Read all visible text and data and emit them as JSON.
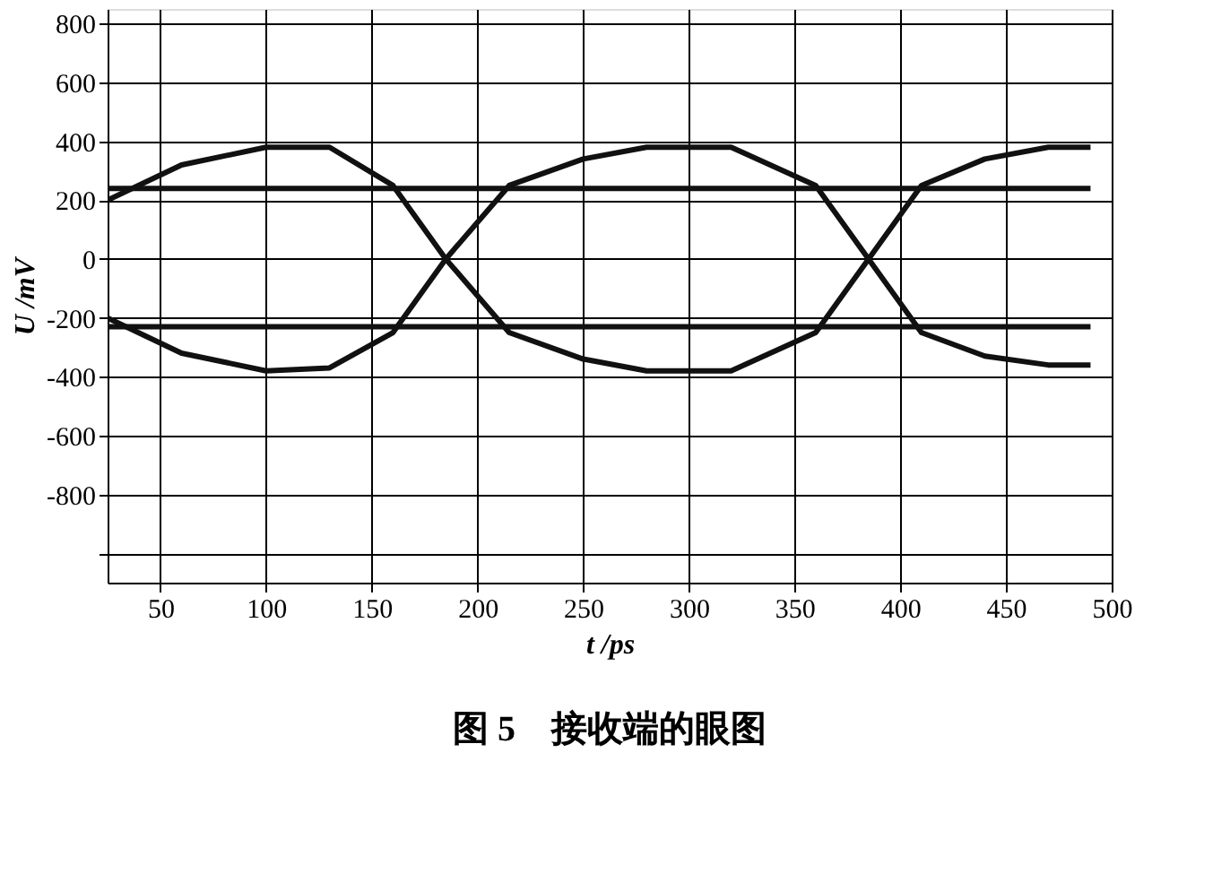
{
  "chart_data": {
    "type": "line",
    "xlabel": "t /ps",
    "ylabel": "U /mV",
    "annotations": [
      "图 5　接收端的眼图"
    ],
    "xlim": [
      25,
      500
    ],
    "xticks": [
      50,
      100,
      150,
      200,
      250,
      300,
      350,
      400,
      450,
      500
    ],
    "ylim": [
      -1100,
      850
    ],
    "yticks": [
      800,
      600,
      400,
      200,
      0,
      -200,
      -400,
      -600,
      -800,
      {
        "value": -1000,
        "label": null
      }
    ],
    "grid": true,
    "legend": false,
    "marker": "none",
    "line_style": "solid",
    "series": [
      {
        "color": "#111111",
        "x": [
          25,
          60,
          100,
          130,
          160,
          185,
          215,
          250,
          280,
          320,
          360,
          385,
          410,
          440,
          470,
          490
        ],
        "values": [
          200,
          320,
          380,
          380,
          250,
          0,
          -250,
          -340,
          -380,
          -380,
          -250,
          0,
          250,
          340,
          380,
          380
        ]
      },
      {
        "color": "#111111",
        "x": [
          25,
          60,
          100,
          130,
          160,
          185,
          215,
          250,
          280,
          320,
          360,
          385,
          410,
          440,
          470,
          490
        ],
        "values": [
          -200,
          -320,
          -380,
          -370,
          -250,
          0,
          250,
          340,
          380,
          380,
          250,
          0,
          -250,
          -330,
          -360,
          -360
        ]
      },
      {
        "color": "#111111",
        "x": [
          25,
          490
        ],
        "values": [
          240,
          240
        ]
      },
      {
        "color": "#111111",
        "x": [
          25,
          490
        ],
        "values": [
          -230,
          -230
        ]
      }
    ]
  }
}
